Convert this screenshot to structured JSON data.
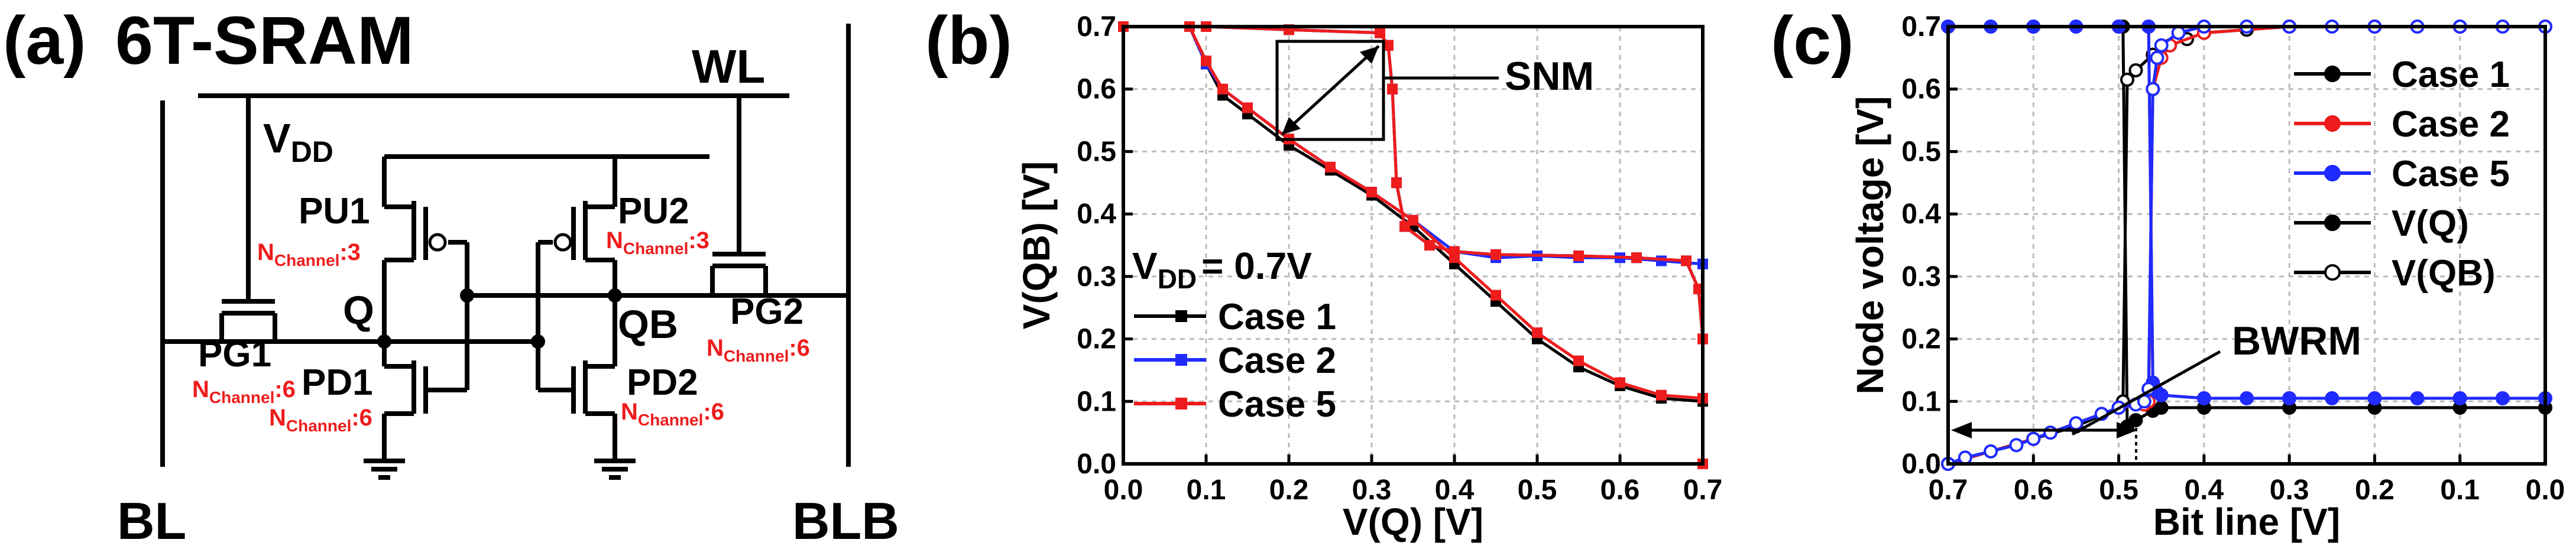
{
  "colors": {
    "black": "#000000",
    "red": "#ee1c1c",
    "blue": "#1f2bff",
    "grid": "#bbbbbb"
  },
  "panel_a": {
    "label": "(a)",
    "title": "6T-SRAM",
    "wl": "WL",
    "bl": "BL",
    "blb": "BLB",
    "vdd_main": "V",
    "vdd_sub": "DD",
    "q": "Q",
    "qb": "QB",
    "pu1": "PU1",
    "pu2": "PU2",
    "pd1": "PD1",
    "pd2": "PD2",
    "pg1": "PG1",
    "pg2": "PG2",
    "n_main": "N",
    "n_sub": "Channel",
    "pu1_n": ":3",
    "pu2_n": ":3",
    "pd1_n": ":6",
    "pd2_n": ":6",
    "pg1_n": ":6",
    "pg2_n": ":6"
  },
  "chart_data": [
    {
      "panel": "(b)",
      "type": "line",
      "xlabel": "V(Q) [V]",
      "ylabel": "V(QB) [V]",
      "xlim": [
        0,
        0.7
      ],
      "ylim": [
        0,
        0.7
      ],
      "xticks": [
        "0.0",
        "0.1",
        "0.2",
        "0.3",
        "0.4",
        "0.5",
        "0.6",
        "0.7"
      ],
      "yticks": [
        "0.0",
        "0.1",
        "0.2",
        "0.3",
        "0.4",
        "0.5",
        "0.6",
        "0.7"
      ],
      "grid": true,
      "annotation": "SNM",
      "vdd_main": "V",
      "vdd_sub": "DD",
      "vdd_val": "= 0.7V",
      "legend_position": "bottom-left",
      "series": [
        {
          "name": "Case 1",
          "color": "#000000",
          "marker": "square",
          "vtc": {
            "x": [
              0,
              0.08,
              0.1,
              0.12,
              0.15,
              0.2,
              0.25,
              0.3,
              0.35,
              0.4,
              0.45,
              0.5,
              0.55,
              0.6,
              0.65,
              0.7
            ],
            "y": [
              0.7,
              0.7,
              0.64,
              0.59,
              0.56,
              0.51,
              0.47,
              0.43,
              0.38,
              0.32,
              0.26,
              0.2,
              0.155,
              0.125,
              0.105,
              0.1
            ]
          },
          "inv": {
            "x": [
              0.7,
              0.7,
              0.695,
              0.68,
              0.62,
              0.55,
              0.45,
              0.4,
              0.37,
              0.34,
              0.33,
              0.325,
              0.32,
              0.31,
              0.2,
              0.1,
              0
            ],
            "y": [
              0,
              0.2,
              0.28,
              0.325,
              0.33,
              0.333,
              0.335,
              0.34,
              0.35,
              0.38,
              0.45,
              0.6,
              0.67,
              0.69,
              0.695,
              0.7,
              0.7
            ]
          }
        },
        {
          "name": "Case 2",
          "color": "#1f2bff",
          "marker": "square",
          "vtc": {
            "x": [
              0,
              0.08,
              0.1,
              0.12,
              0.15,
              0.2,
              0.25,
              0.3,
              0.35,
              0.4,
              0.45,
              0.5,
              0.55,
              0.6,
              0.65,
              0.7
            ],
            "y": [
              0.7,
              0.7,
              0.64,
              0.6,
              0.57,
              0.52,
              0.475,
              0.435,
              0.39,
              0.34,
              0.33,
              0.333,
              0.33,
              0.33,
              0.325,
              0.32
            ]
          },
          "inv": {
            "x": [
              0.7,
              0.7,
              0.695,
              0.68,
              0.62,
              0.55,
              0.45,
              0.4,
              0.37,
              0.34,
              0.33,
              0.325,
              0.32,
              0.31,
              0.2,
              0.1,
              0
            ],
            "y": [
              0,
              0.2,
              0.28,
              0.325,
              0.33,
              0.333,
              0.335,
              0.34,
              0.35,
              0.38,
              0.45,
              0.6,
              0.67,
              0.69,
              0.695,
              0.7,
              0.7
            ]
          }
        },
        {
          "name": "Case 5",
          "color": "#ee1c1c",
          "marker": "square",
          "vtc": {
            "x": [
              0,
              0.08,
              0.1,
              0.12,
              0.15,
              0.2,
              0.25,
              0.3,
              0.35,
              0.4,
              0.45,
              0.5,
              0.55,
              0.6,
              0.65,
              0.7
            ],
            "y": [
              0.7,
              0.7,
              0.645,
              0.6,
              0.57,
              0.52,
              0.475,
              0.435,
              0.39,
              0.33,
              0.27,
              0.21,
              0.165,
              0.13,
              0.11,
              0.105
            ]
          },
          "inv": {
            "x": [
              0.7,
              0.7,
              0.695,
              0.68,
              0.62,
              0.55,
              0.45,
              0.4,
              0.37,
              0.34,
              0.33,
              0.325,
              0.32,
              0.31,
              0.2,
              0.1,
              0
            ],
            "y": [
              0,
              0.2,
              0.28,
              0.325,
              0.33,
              0.333,
              0.335,
              0.34,
              0.35,
              0.38,
              0.45,
              0.6,
              0.67,
              0.69,
              0.695,
              0.7,
              0.7
            ]
          }
        }
      ]
    },
    {
      "panel": "(c)",
      "type": "line",
      "xlabel": "Bit line [V]",
      "ylabel": "Node voltage [V]",
      "xlim": [
        0.7,
        0.0
      ],
      "ylim": [
        0,
        0.7
      ],
      "xticks": [
        "0.7",
        "0.6",
        "0.5",
        "0.4",
        "0.3",
        "0.2",
        "0.1",
        "0.0"
      ],
      "yticks": [
        "0.0",
        "0.1",
        "0.2",
        "0.3",
        "0.4",
        "0.5",
        "0.6",
        "0.7"
      ],
      "grid": true,
      "annotation": "BWRM",
      "legend_position": "top-right",
      "legend": [
        {
          "name": "Case 1",
          "color": "#000000",
          "fill": "filled"
        },
        {
          "name": "Case 2",
          "color": "#ee1c1c",
          "fill": "filled"
        },
        {
          "name": "Case 5",
          "color": "#1f2bff",
          "fill": "filled"
        },
        {
          "name": "V(Q)",
          "color": "#000000",
          "fill": "filled"
        },
        {
          "name": "V(QB)",
          "color": "#000000",
          "fill": "open"
        }
      ],
      "series": [
        {
          "name": "Case 1 V(Q)",
          "color": "#000000",
          "marker": "filled",
          "x": [
            0.7,
            0.6,
            0.5,
            0.495,
            0.49,
            0.48,
            0.46,
            0.45,
            0.4,
            0.3,
            0.2,
            0.1,
            0.0
          ],
          "y": [
            0.7,
            0.7,
            0.7,
            0.7,
            0.06,
            0.07,
            0.085,
            0.09,
            0.09,
            0.09,
            0.09,
            0.09,
            0.09
          ]
        },
        {
          "name": "Case 1 V(QB)",
          "color": "#000000",
          "marker": "open",
          "x": [
            0.7,
            0.6,
            0.55,
            0.5,
            0.495,
            0.49,
            0.48,
            0.46,
            0.44,
            0.42,
            0.4,
            0.35,
            0.3,
            0.2,
            0.1,
            0.0
          ],
          "y": [
            0.0,
            0.04,
            0.06,
            0.09,
            0.1,
            0.615,
            0.63,
            0.655,
            0.67,
            0.68,
            0.69,
            0.695,
            0.7,
            0.7,
            0.7,
            0.7
          ]
        },
        {
          "name": "Case 2 V(Q)",
          "color": "#ee1c1c",
          "marker": "filled",
          "x": [
            0.7,
            0.6,
            0.5,
            0.465,
            0.46,
            0.455,
            0.45,
            0.4,
            0.3,
            0.2,
            0.1,
            0.0
          ],
          "y": [
            0.7,
            0.7,
            0.7,
            0.7,
            0.13,
            0.115,
            0.11,
            0.105,
            0.105,
            0.105,
            0.105,
            0.105
          ]
        },
        {
          "name": "Case 2 V(QB)",
          "color": "#ee1c1c",
          "marker": "open",
          "x": [
            0.7,
            0.6,
            0.5,
            0.47,
            0.465,
            0.46,
            0.45,
            0.44,
            0.4,
            0.3,
            0.2,
            0.1,
            0.0
          ],
          "y": [
            0.0,
            0.04,
            0.09,
            0.095,
            0.1,
            0.6,
            0.65,
            0.67,
            0.69,
            0.7,
            0.7,
            0.7,
            0.7
          ]
        },
        {
          "name": "Case 5 V(Q)",
          "color": "#1f2bff",
          "marker": "filled",
          "x": [
            0.7,
            0.65,
            0.6,
            0.55,
            0.5,
            0.465,
            0.46,
            0.455,
            0.45,
            0.4,
            0.35,
            0.3,
            0.25,
            0.2,
            0.15,
            0.1,
            0.05,
            0.0
          ],
          "y": [
            0.7,
            0.7,
            0.7,
            0.7,
            0.7,
            0.7,
            0.13,
            0.115,
            0.11,
            0.105,
            0.105,
            0.105,
            0.105,
            0.105,
            0.105,
            0.105,
            0.105,
            0.105
          ]
        },
        {
          "name": "Case 5 V(QB)",
          "color": "#1f2bff",
          "marker": "open",
          "x": [
            0.7,
            0.68,
            0.65,
            0.62,
            0.6,
            0.58,
            0.55,
            0.52,
            0.5,
            0.48,
            0.47,
            0.465,
            0.46,
            0.455,
            0.45,
            0.43,
            0.4,
            0.35,
            0.3,
            0.25,
            0.2,
            0.15,
            0.1,
            0.05,
            0.0
          ],
          "y": [
            0.0,
            0.01,
            0.02,
            0.03,
            0.04,
            0.05,
            0.065,
            0.08,
            0.09,
            0.095,
            0.1,
            0.12,
            0.6,
            0.65,
            0.67,
            0.69,
            0.7,
            0.7,
            0.7,
            0.7,
            0.7,
            0.7,
            0.7,
            0.7,
            0.7
          ]
        }
      ]
    }
  ]
}
